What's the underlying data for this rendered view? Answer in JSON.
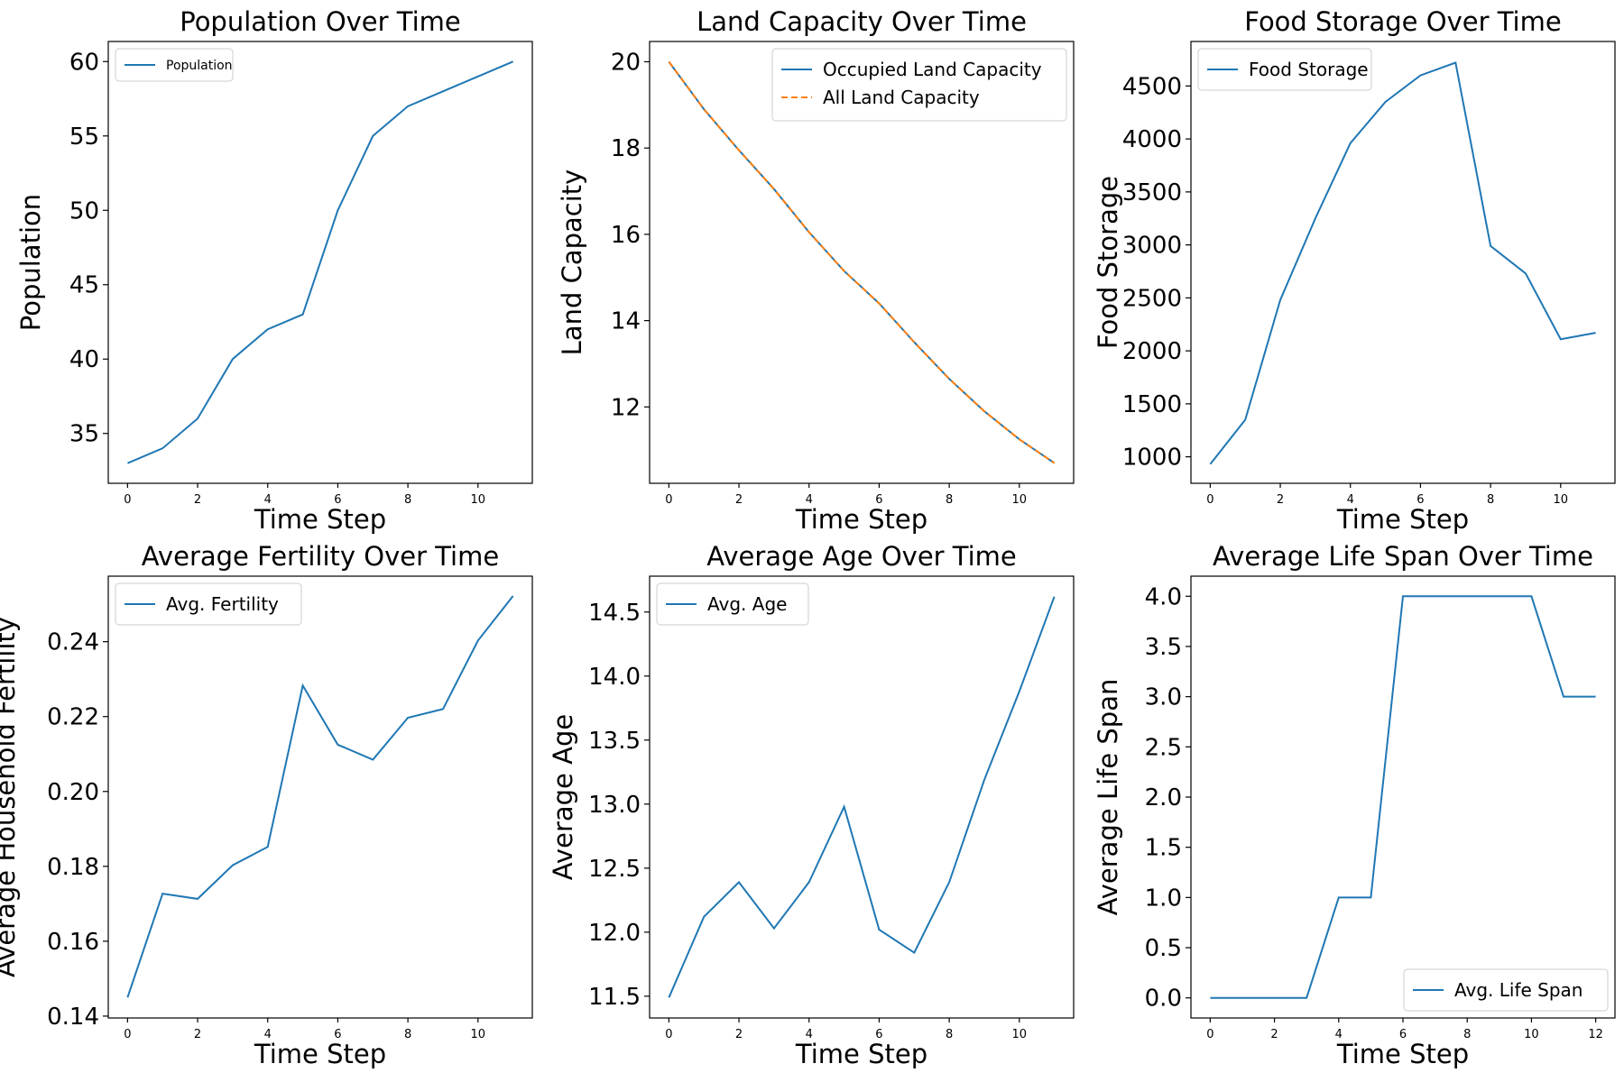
{
  "chart_data": [
    {
      "type": "line",
      "title": "Population Over Time",
      "xlabel": "Time Step",
      "ylabel": "Population",
      "xlim": [
        -0.55,
        11.55
      ],
      "ylim": [
        31.65,
        61.35
      ],
      "xticks": [
        "0",
        "2",
        "4",
        "6",
        "8",
        "10"
      ],
      "yticks": [
        "35",
        "40",
        "45",
        "50",
        "55",
        "60"
      ],
      "legend": "upper-left",
      "grid": false,
      "series": [
        {
          "name": "Population",
          "color": "#1f77b4",
          "style": "solid",
          "x": [
            0,
            1,
            2,
            3,
            4,
            5,
            6,
            7,
            8,
            9,
            10,
            11
          ],
          "y": [
            33,
            34,
            36,
            40,
            42,
            43,
            50,
            55,
            57,
            58,
            59,
            60
          ]
        }
      ]
    },
    {
      "type": "line",
      "title": "Land Capacity Over Time",
      "xlabel": "Time Step",
      "ylabel": "Land Capacity",
      "xlim": [
        -0.55,
        11.55
      ],
      "ylim": [
        10.23,
        20.47
      ],
      "xticks": [
        "0",
        "2",
        "4",
        "6",
        "8",
        "10"
      ],
      "yticks": [
        "12",
        "14",
        "16",
        "18",
        "20"
      ],
      "legend": "upper-right",
      "grid": false,
      "series": [
        {
          "name": "Occupied Land Capacity",
          "color": "#1f77b4",
          "style": "solid",
          "x": [
            0,
            1,
            2,
            3,
            4,
            5,
            6,
            7,
            8,
            9,
            10,
            11
          ],
          "y": [
            20.0,
            18.9,
            17.95,
            17.05,
            16.05,
            15.15,
            14.4,
            13.5,
            12.65,
            11.9,
            11.25,
            10.7
          ]
        },
        {
          "name": "All Land Capacity",
          "color": "#ff7f0e",
          "style": "dashed",
          "x": [
            0,
            1,
            2,
            3,
            4,
            5,
            6,
            7,
            8,
            9,
            10,
            11
          ],
          "y": [
            20.0,
            18.9,
            17.95,
            17.05,
            16.05,
            15.15,
            14.4,
            13.5,
            12.65,
            11.9,
            11.25,
            10.7
          ]
        }
      ]
    },
    {
      "type": "line",
      "title": "Food Storage Over Time",
      "xlabel": "Time Step",
      "ylabel": "Food Storage",
      "xlim": [
        -0.55,
        11.55
      ],
      "ylim": [
        750,
        4920
      ],
      "xticks": [
        "0",
        "2",
        "4",
        "6",
        "8",
        "10"
      ],
      "yticks": [
        "1000",
        "1500",
        "2000",
        "2500",
        "3000",
        "3500",
        "4000",
        "4500"
      ],
      "legend": "upper-left",
      "grid": false,
      "series": [
        {
          "name": "Food Storage",
          "color": "#1f77b4",
          "style": "solid",
          "x": [
            0,
            1,
            2,
            3,
            4,
            5,
            6,
            7,
            8,
            9,
            10,
            11
          ],
          "y": [
            930,
            1350,
            2480,
            3250,
            3960,
            4350,
            4600,
            4720,
            2990,
            2730,
            2110,
            2170
          ]
        }
      ]
    },
    {
      "type": "line",
      "title": "Average Fertility Over Time",
      "xlabel": "Time Step",
      "ylabel": "Average Household Fertility",
      "xlim": [
        -0.55,
        11.55
      ],
      "ylim": [
        0.1395,
        0.2575
      ],
      "xticks": [
        "0",
        "2",
        "4",
        "6",
        "8",
        "10"
      ],
      "yticks": [
        "0.14",
        "0.16",
        "0.18",
        "0.20",
        "0.22",
        "0.24"
      ],
      "legend": "upper-left",
      "grid": false,
      "series": [
        {
          "name": "Avg. Fertility",
          "color": "#1f77b4",
          "style": "solid",
          "x": [
            0,
            1,
            2,
            3,
            4,
            5,
            6,
            7,
            8,
            9,
            10,
            11
          ],
          "y": [
            0.145,
            0.1727,
            0.1713,
            0.1803,
            0.1852,
            0.2283,
            0.2125,
            0.2085,
            0.2197,
            0.222,
            0.2403,
            0.2522
          ]
        }
      ]
    },
    {
      "type": "line",
      "title": "Average Age Over Time",
      "xlabel": "Time Step",
      "ylabel": "Average Age",
      "xlim": [
        -0.55,
        11.55
      ],
      "ylim": [
        11.33,
        14.78
      ],
      "xticks": [
        "0",
        "2",
        "4",
        "6",
        "8",
        "10"
      ],
      "yticks": [
        "11.5",
        "12.0",
        "12.5",
        "13.0",
        "13.5",
        "14.0",
        "14.5"
      ],
      "legend": "upper-left",
      "grid": false,
      "series": [
        {
          "name": "Avg. Age",
          "color": "#1f77b4",
          "style": "solid",
          "x": [
            0,
            1,
            2,
            3,
            4,
            5,
            6,
            7,
            8,
            9,
            10,
            11
          ],
          "y": [
            11.49,
            12.12,
            12.39,
            12.03,
            12.39,
            12.98,
            12.02,
            11.84,
            12.39,
            13.19,
            13.88,
            14.62
          ]
        }
      ]
    },
    {
      "type": "line",
      "title": "Average Life Span Over Time",
      "xlabel": "Time Step",
      "ylabel": "Average Life Span",
      "xlim": [
        -0.6,
        12.6
      ],
      "ylim": [
        -0.2,
        4.2
      ],
      "xticks": [
        "0",
        "2",
        "4",
        "6",
        "8",
        "10",
        "12"
      ],
      "yticks": [
        "0.0",
        "0.5",
        "1.0",
        "1.5",
        "2.0",
        "2.5",
        "3.0",
        "3.5",
        "4.0"
      ],
      "legend": "lower-right",
      "grid": false,
      "series": [
        {
          "name": "Avg. Life Span",
          "color": "#1f77b4",
          "style": "solid",
          "x": [
            0,
            1,
            2,
            3,
            4,
            5,
            6,
            7,
            8,
            9,
            10,
            11,
            12
          ],
          "y": [
            0,
            0,
            0,
            0,
            1,
            1,
            4,
            4,
            4,
            4,
            4,
            3,
            3
          ]
        }
      ]
    }
  ]
}
